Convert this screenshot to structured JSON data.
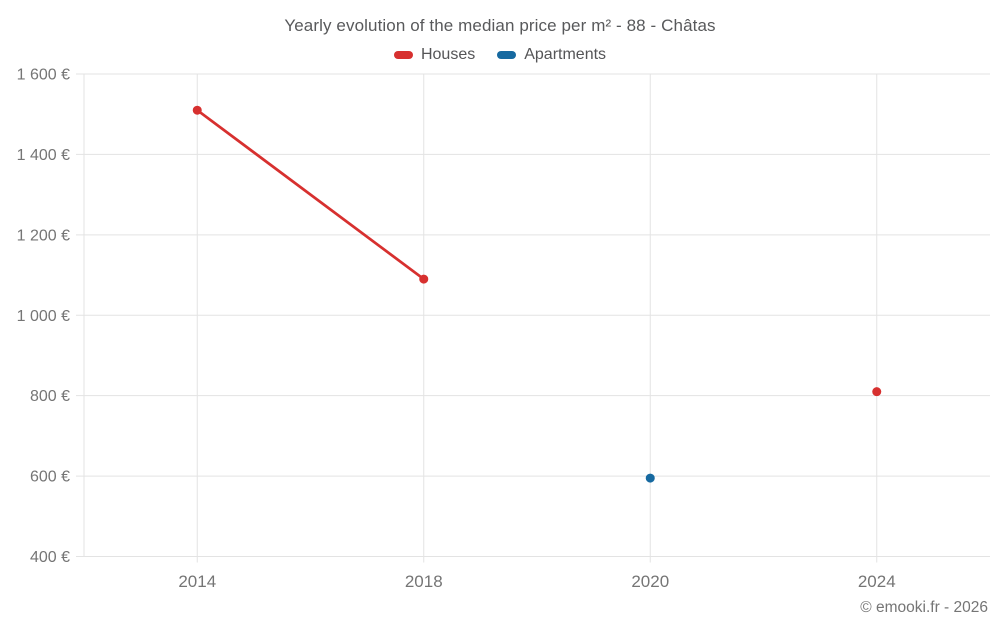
{
  "title": "Yearly evolution of the median price per m² - 88 - Châtas",
  "legend": [
    {
      "label": "Houses",
      "color": "#d7302f"
    },
    {
      "label": "Apartments",
      "color": "#1669a0"
    }
  ],
  "footer": {
    "copyright": "© emooki.fr - 2026"
  },
  "chart_data": {
    "type": "line",
    "title": "Yearly evolution of the median price per m² - 88 - Châtas",
    "categories": [
      "2014",
      "2018",
      "2020",
      "2024"
    ],
    "series": [
      {
        "name": "Houses",
        "color": "#d7302f",
        "values": [
          1510,
          1090,
          null,
          810
        ]
      },
      {
        "name": "Apartments",
        "color": "#1669a0",
        "values": [
          null,
          null,
          595,
          null
        ]
      }
    ],
    "xlabel": "",
    "ylabel": "",
    "ylim": [
      400,
      1600
    ],
    "y_ticks": [
      400,
      600,
      800,
      1000,
      1200,
      1400,
      1600
    ],
    "y_tick_labels": [
      "400 €",
      "600 €",
      "800 €",
      "1 000 €",
      "1 200 €",
      "1 400 €",
      "1 600 €"
    ],
    "grid": true,
    "legend_position": "top",
    "colors": {
      "grid": "#e3e3e3",
      "tick_text": "#757575",
      "title_text": "#58595b"
    }
  }
}
